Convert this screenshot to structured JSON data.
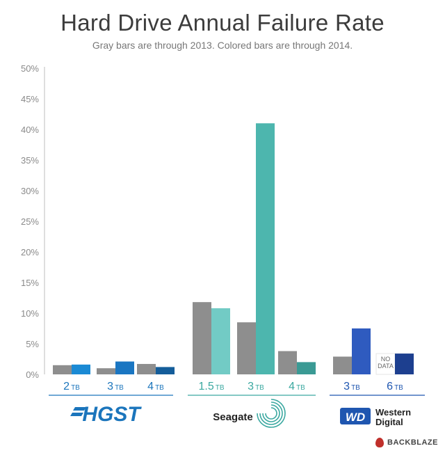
{
  "chart_data": {
    "type": "bar",
    "title": "Hard Drive Annual Failure Rate",
    "subtitle": "Gray bars are through 2013.  Colored bars are through 2014.",
    "ylim": [
      0,
      50
    ],
    "yticks": [
      "0%",
      "5%",
      "10%",
      "15%",
      "20%",
      "25%",
      "30%",
      "35%",
      "40%",
      "45%",
      "50%"
    ],
    "grid": false,
    "groups": [
      {
        "brand": "HGST",
        "brand_color": "#1b75bc",
        "drives": [
          {
            "size": "2",
            "unit": "TB",
            "gray_2013": 1.5,
            "color_2014": 1.6,
            "color": "#1b8ad4"
          },
          {
            "size": "3",
            "unit": "TB",
            "gray_2013": 1.0,
            "color_2014": 2.1,
            "color": "#1a76c2"
          },
          {
            "size": "4",
            "unit": "TB",
            "gray_2013": 1.7,
            "color_2014": 1.2,
            "color": "#145d9a"
          }
        ]
      },
      {
        "brand": "Seagate",
        "brand_color": "#3aa8a0",
        "drives": [
          {
            "size": "1.5",
            "unit": "TB",
            "gray_2013": 11.8,
            "color_2014": 10.8,
            "color": "#72cbc5"
          },
          {
            "size": "3",
            "unit": "TB",
            "gray_2013": 8.5,
            "color_2014": 41.0,
            "color": "#4db6ae"
          },
          {
            "size": "4",
            "unit": "TB",
            "gray_2013": 3.8,
            "color_2014": 2.0,
            "color": "#3a9a94"
          }
        ]
      },
      {
        "brand": "Western Digital",
        "brand_color": "#1f56b0",
        "drives": [
          {
            "size": "3",
            "unit": "TB",
            "gray_2013": 2.9,
            "color_2014": 7.5,
            "color": "#2f5bbf"
          },
          {
            "size": "6",
            "unit": "TB",
            "gray_2013": null,
            "gray_label": "NO DATA",
            "color_2014": 3.4,
            "color": "#1d3f8f"
          }
        ]
      }
    ]
  },
  "logos": {
    "hgst": "HGST",
    "seagate": "Seagate",
    "wd_mark": "WD",
    "wd_line1": "Western",
    "wd_line2": "Digital"
  },
  "credit": "BACKBLAZE",
  "colors": {
    "gray_bar": "#8e8e8e",
    "axis": "#bdbdbd"
  }
}
